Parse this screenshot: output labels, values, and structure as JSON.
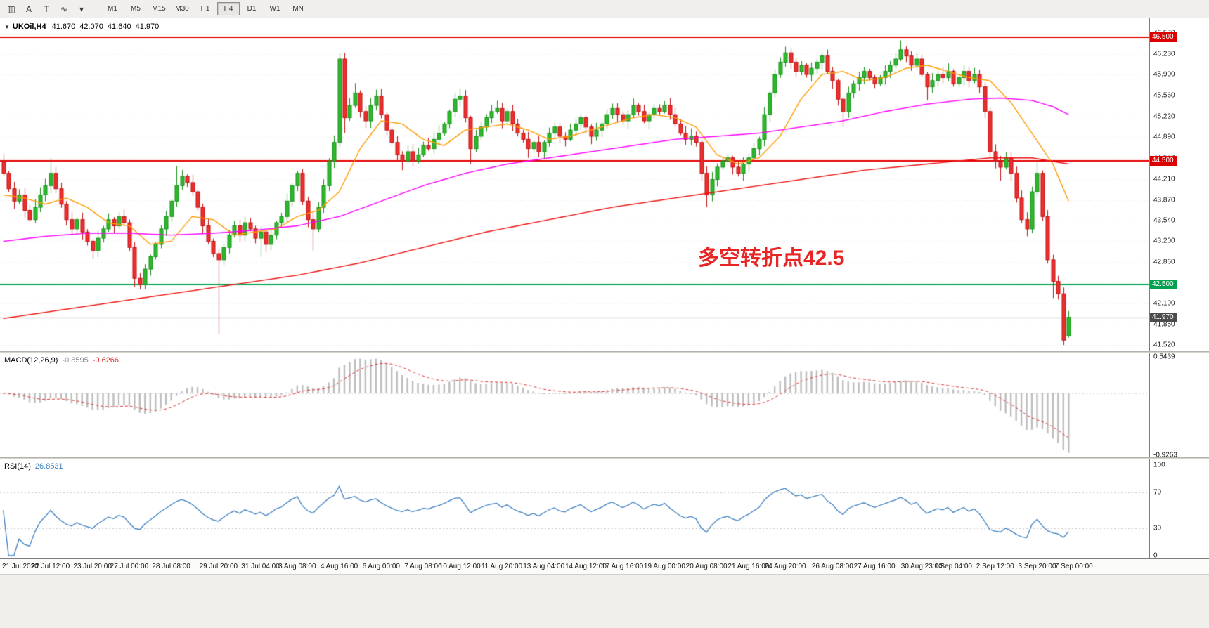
{
  "toolbar": {
    "icons": [
      {
        "name": "chart-window-icon",
        "glyph": "▥"
      },
      {
        "name": "cursor-tool-icon",
        "glyph": "A"
      },
      {
        "name": "text-tool-icon",
        "glyph": "T"
      },
      {
        "name": "indicators-icon",
        "glyph": "∿"
      },
      {
        "name": "indicators-dropdown-icon",
        "glyph": "▾"
      }
    ],
    "timeframes": [
      "M1",
      "M5",
      "M15",
      "M30",
      "H1",
      "H4",
      "D1",
      "W1",
      "MN"
    ],
    "active_timeframe": "H4"
  },
  "chart_header": {
    "marker": "▼",
    "symbol": "UKOil,H4",
    "open": "41.670",
    "high": "42.070",
    "low": "41.640",
    "close": "41.970"
  },
  "annotation": {
    "text": "多空转折点42.5",
    "color": "#e82525"
  },
  "price_axis": {
    "ticks": [
      {
        "label": "46.570",
        "value": 46.57
      },
      {
        "label": "46.230",
        "value": 46.23
      },
      {
        "label": "45.900",
        "value": 45.9
      },
      {
        "label": "45.560",
        "value": 45.56
      },
      {
        "label": "45.220",
        "value": 45.22
      },
      {
        "label": "44.890",
        "value": 44.89
      },
      {
        "label": "44.550",
        "value": 44.55
      },
      {
        "label": "44.210",
        "value": 44.21
      },
      {
        "label": "43.870",
        "value": 43.87
      },
      {
        "label": "43.540",
        "value": 43.54
      },
      {
        "label": "43.200",
        "value": 43.2
      },
      {
        "label": "42.860",
        "value": 42.86
      },
      {
        "label": "42.190",
        "value": 42.19
      },
      {
        "label": "41.850",
        "value": 41.85
      },
      {
        "label": "41.520",
        "value": 41.52
      }
    ],
    "grid_values": [
      46.57,
      46.23,
      45.9,
      45.56,
      45.22,
      44.89,
      44.55,
      44.21,
      43.87,
      43.54,
      43.2,
      42.86,
      42.53,
      42.19,
      41.85,
      41.52
    ],
    "badges": [
      {
        "label": "46.500",
        "value": 46.5,
        "bg": "#dd0000"
      },
      {
        "label": "44.500",
        "value": 44.5,
        "bg": "#dd0000"
      },
      {
        "label": "42.500",
        "value": 42.5,
        "bg": "#00a24f"
      },
      {
        "label": "41.970",
        "value": 41.97,
        "bg": "#4c4c4c"
      }
    ]
  },
  "hlines": [
    {
      "value": 46.5,
      "color": "#e60000",
      "width": 2
    },
    {
      "value": 44.5,
      "color": "#e60000",
      "width": 2
    },
    {
      "value": 42.5,
      "color": "#00a651",
      "width": 2
    },
    {
      "value": 41.97,
      "color": "#9a9a9a",
      "width": 1
    }
  ],
  "indicators": {
    "macd": {
      "name": "MACD(12,26,9)",
      "value_main": "-0.8595",
      "value_signal": "-0.6266",
      "axis_ticks": [
        {
          "label": "0.5439",
          "value": 0.5439
        },
        {
          "label": "-0.9263",
          "value": -0.9263
        }
      ],
      "range_top": 0.5964,
      "range_bottom": -0.958,
      "histogram_color": "#bdbdbd",
      "signal_color": "#e03333"
    },
    "rsi": {
      "name": "RSI(14)",
      "value": "26.8531",
      "axis_ticks": [
        {
          "label": "100",
          "value": 100
        },
        {
          "label": "70",
          "value": 70
        },
        {
          "label": "30",
          "value": 30
        },
        {
          "label": "0",
          "value": 0
        }
      ],
      "levels": [
        70,
        30
      ],
      "range_top": 106.2,
      "range_bottom": -3.1,
      "line_color": "#3e7fc1"
    }
  },
  "time_axis": {
    "labels": [
      {
        "text": "21 Jul 2020",
        "idx": 0
      },
      {
        "text": "22 Jul 12:00",
        "idx": 9
      },
      {
        "text": "23 Jul 20:00",
        "idx": 17
      },
      {
        "text": "27 Jul 00:00",
        "idx": 24
      },
      {
        "text": "28 Jul 08:00",
        "idx": 32
      },
      {
        "text": "29 Jul 20:00",
        "idx": 41
      },
      {
        "text": "31 Jul 04:00",
        "idx": 49
      },
      {
        "text": "3 Aug 08:00",
        "idx": 56
      },
      {
        "text": "4 Aug 16:00",
        "idx": 64
      },
      {
        "text": "6 Aug 00:00",
        "idx": 72
      },
      {
        "text": "7 Aug 08:00",
        "idx": 80
      },
      {
        "text": "10 Aug 12:00",
        "idx": 87
      },
      {
        "text": "11 Aug 20:00",
        "idx": 95
      },
      {
        "text": "13 Aug 04:00",
        "idx": 103
      },
      {
        "text": "14 Aug 12:00",
        "idx": 111
      },
      {
        "text": "17 Aug 16:00",
        "idx": 118
      },
      {
        "text": "19 Aug 00:00",
        "idx": 126
      },
      {
        "text": "20 Aug 08:00",
        "idx": 134
      },
      {
        "text": "21 Aug 16:00",
        "idx": 142
      },
      {
        "text": "24 Aug 20:00",
        "idx": 149
      },
      {
        "text": "26 Aug 08:00",
        "idx": 158
      },
      {
        "text": "27 Aug 16:00",
        "idx": 166
      },
      {
        "text": "30 Aug 23:00",
        "idx": 175
      },
      {
        "text": "1 Sep 04:00",
        "idx": 181
      },
      {
        "text": "2 Sep 12:00",
        "idx": 189
      },
      {
        "text": "3 Sep 20:00",
        "idx": 197
      },
      {
        "text": "7 Sep 00:00",
        "idx": 204
      }
    ]
  },
  "chart_data": {
    "type": "candlestick",
    "symbol": "UKOil",
    "timeframe": "H4",
    "price_top": 46.81,
    "price_bottom": 41.42,
    "up_fill": "#2eb82e",
    "up_border": "#189018",
    "down_fill": "#ec2f2f",
    "down_border": "#bf1212",
    "first_open": 44.5,
    "closes": [
      44.3,
      44.05,
      43.85,
      43.95,
      43.7,
      43.55,
      43.75,
      43.95,
      44.1,
      44.3,
      44.05,
      43.8,
      43.55,
      43.4,
      43.55,
      43.35,
      43.2,
      43.05,
      43.25,
      43.4,
      43.55,
      43.45,
      43.6,
      43.5,
      43.1,
      42.6,
      42.5,
      42.75,
      42.95,
      43.15,
      43.4,
      43.6,
      43.85,
      44.1,
      44.25,
      44.15,
      44.0,
      43.75,
      43.45,
      43.2,
      43.0,
      42.9,
      43.1,
      43.3,
      43.45,
      43.3,
      43.5,
      43.4,
      43.25,
      43.35,
      43.15,
      43.3,
      43.5,
      43.6,
      43.85,
      44.1,
      44.3,
      43.85,
      43.55,
      43.4,
      43.75,
      44.1,
      44.5,
      44.8,
      46.15,
      45.2,
      45.4,
      45.6,
      45.3,
      45.15,
      45.4,
      45.55,
      45.25,
      45.0,
      44.8,
      44.6,
      44.5,
      44.65,
      44.5,
      44.6,
      44.75,
      44.7,
      44.85,
      44.95,
      45.1,
      45.3,
      45.5,
      45.55,
      45.2,
      44.7,
      44.9,
      45.05,
      45.2,
      45.3,
      45.35,
      45.15,
      45.3,
      45.1,
      44.95,
      44.85,
      44.7,
      44.8,
      44.65,
      44.8,
      44.95,
      45.05,
      44.9,
      44.85,
      45.0,
      45.1,
      45.2,
      45.05,
      44.9,
      45.0,
      45.1,
      45.25,
      45.35,
      45.25,
      45.15,
      45.25,
      45.4,
      45.3,
      45.15,
      45.25,
      45.35,
      45.3,
      45.4,
      45.25,
      45.1,
      44.95,
      44.85,
      44.9,
      44.8,
      44.3,
      43.95,
      44.2,
      44.4,
      44.5,
      44.55,
      44.4,
      44.3,
      44.45,
      44.55,
      44.7,
      44.85,
      45.25,
      45.6,
      45.9,
      46.1,
      46.25,
      46.1,
      45.95,
      46.05,
      45.9,
      46.0,
      46.1,
      46.2,
      45.95,
      45.8,
      45.5,
      45.3,
      45.6,
      45.75,
      45.85,
      45.95,
      45.85,
      45.75,
      45.85,
      45.95,
      46.05,
      46.15,
      46.3,
      46.2,
      46.05,
      46.15,
      45.9,
      45.7,
      45.8,
      45.9,
      45.85,
      45.95,
      45.75,
      45.85,
      45.95,
      45.8,
      45.9,
      45.7,
      45.3,
      44.65,
      44.5,
      44.4,
      44.55,
      44.3,
      43.9,
      43.55,
      43.4,
      44.0,
      44.3,
      43.6,
      42.9,
      42.55,
      42.35,
      41.6,
      41.97
    ],
    "wick_overrides": {
      "9": {
        "high": 44.55
      },
      "17": {
        "low": 42.92
      },
      "25": {
        "low": 42.46
      },
      "26": {
        "low": 42.42
      },
      "33": {
        "high": 44.42
      },
      "41": {
        "low": 41.7
      },
      "49": {
        "low": 42.95
      },
      "59": {
        "low": 43.05
      },
      "64": {
        "high": 46.25
      },
      "65": {
        "low": 44.95
      },
      "67": {
        "high": 45.76
      },
      "76": {
        "low": 44.35
      },
      "89": {
        "low": 44.45
      },
      "100": {
        "low": 44.55
      },
      "134": {
        "low": 43.75
      },
      "149": {
        "high": 46.35
      },
      "160": {
        "low": 45.05
      },
      "171": {
        "high": 46.45
      },
      "176": {
        "low": 45.48
      },
      "180": {
        "high": 46.08
      },
      "190": {
        "low": 44.18
      },
      "195": {
        "low": 43.28
      },
      "197": {
        "high": 44.5
      },
      "200": {
        "low": 42.28
      },
      "202": {
        "low": 41.52
      }
    },
    "last_candle": {
      "open": 41.67,
      "high": 42.07,
      "low": 41.64,
      "close": 41.97
    },
    "ma_lines": [
      {
        "name": "ma-fast-orange",
        "color": "#ff9c00",
        "points": [
          [
            0,
            43.95
          ],
          [
            4,
            43.9
          ],
          [
            8,
            43.8
          ],
          [
            12,
            43.9
          ],
          [
            16,
            43.75
          ],
          [
            20,
            43.5
          ],
          [
            24,
            43.45
          ],
          [
            28,
            43.15
          ],
          [
            32,
            43.2
          ],
          [
            36,
            43.6
          ],
          [
            40,
            43.55
          ],
          [
            44,
            43.3
          ],
          [
            48,
            43.35
          ],
          [
            52,
            43.4
          ],
          [
            56,
            43.6
          ],
          [
            60,
            43.7
          ],
          [
            64,
            44.0
          ],
          [
            68,
            44.7
          ],
          [
            72,
            45.15
          ],
          [
            76,
            45.1
          ],
          [
            80,
            44.85
          ],
          [
            84,
            44.75
          ],
          [
            88,
            45.0
          ],
          [
            92,
            45.05
          ],
          [
            96,
            45.1
          ],
          [
            100,
            45.0
          ],
          [
            104,
            44.85
          ],
          [
            108,
            44.9
          ],
          [
            112,
            45.0
          ],
          [
            116,
            45.1
          ],
          [
            120,
            45.2
          ],
          [
            124,
            45.25
          ],
          [
            128,
            45.2
          ],
          [
            132,
            45.05
          ],
          [
            136,
            44.6
          ],
          [
            140,
            44.45
          ],
          [
            144,
            44.55
          ],
          [
            148,
            44.9
          ],
          [
            152,
            45.5
          ],
          [
            156,
            45.9
          ],
          [
            160,
            45.95
          ],
          [
            164,
            45.8
          ],
          [
            168,
            45.85
          ],
          [
            172,
            46.0
          ],
          [
            176,
            46.05
          ],
          [
            180,
            45.95
          ],
          [
            184,
            45.85
          ],
          [
            188,
            45.8
          ],
          [
            192,
            45.45
          ],
          [
            196,
            44.95
          ],
          [
            200,
            44.45
          ],
          [
            203,
            43.85
          ]
        ]
      },
      {
        "name": "ma-mid-magenta",
        "color": "#ff00ff",
        "points": [
          [
            0,
            43.2
          ],
          [
            8,
            43.28
          ],
          [
            16,
            43.33
          ],
          [
            24,
            43.33
          ],
          [
            32,
            43.3
          ],
          [
            40,
            43.33
          ],
          [
            48,
            43.38
          ],
          [
            56,
            43.45
          ],
          [
            64,
            43.6
          ],
          [
            72,
            43.85
          ],
          [
            80,
            44.1
          ],
          [
            88,
            44.3
          ],
          [
            96,
            44.45
          ],
          [
            104,
            44.55
          ],
          [
            112,
            44.65
          ],
          [
            120,
            44.75
          ],
          [
            128,
            44.85
          ],
          [
            136,
            44.9
          ],
          [
            144,
            44.95
          ],
          [
            152,
            45.05
          ],
          [
            160,
            45.15
          ],
          [
            168,
            45.3
          ],
          [
            176,
            45.42
          ],
          [
            184,
            45.5
          ],
          [
            190,
            45.52
          ],
          [
            196,
            45.48
          ],
          [
            200,
            45.38
          ],
          [
            203,
            45.25
          ]
        ]
      },
      {
        "name": "ma-slow-red",
        "color": "#ee1111",
        "points": [
          [
            0,
            41.95
          ],
          [
            12,
            42.1
          ],
          [
            24,
            42.25
          ],
          [
            36,
            42.4
          ],
          [
            44,
            42.5
          ],
          [
            56,
            42.65
          ],
          [
            68,
            42.85
          ],
          [
            80,
            43.1
          ],
          [
            92,
            43.35
          ],
          [
            104,
            43.55
          ],
          [
            116,
            43.75
          ],
          [
            128,
            43.9
          ],
          [
            140,
            44.05
          ],
          [
            152,
            44.2
          ],
          [
            164,
            44.35
          ],
          [
            176,
            44.45
          ],
          [
            188,
            44.55
          ],
          [
            196,
            44.55
          ],
          [
            203,
            44.45
          ]
        ]
      }
    ]
  }
}
